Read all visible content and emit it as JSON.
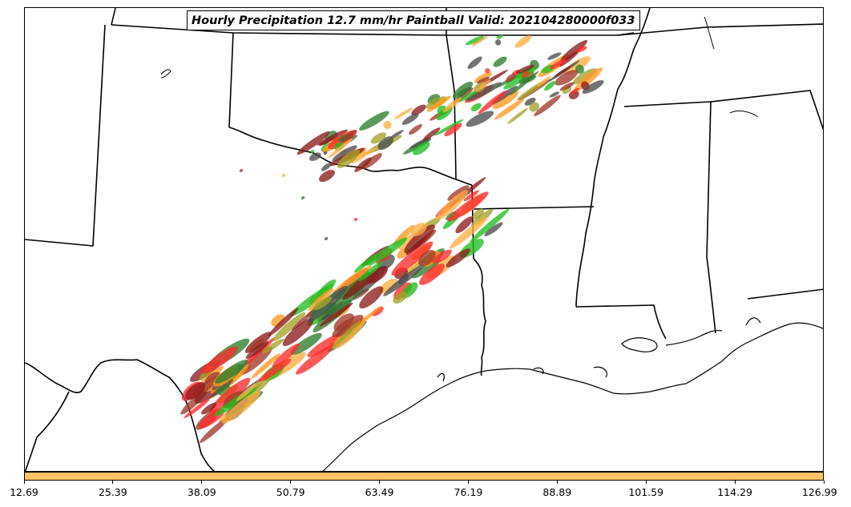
{
  "map": {
    "title": "Hourly Precipitation 12.7 mm/hr Paintball Valid: 202104280000f033",
    "type": "precipitation paintball map",
    "background_color": "#ffffff",
    "boundary_color": "#000000",
    "member_colors": [
      "#ff2a2a",
      "#8b1c1c",
      "#4d4d4d",
      "#1fbf1f",
      "#ff9a1f",
      "#a4a22a",
      "#2e7d2e",
      "#ffae42",
      "#a03a2a"
    ]
  },
  "colorbar": {
    "color": "#ffc266",
    "ticks": [
      "12.69",
      "25.39",
      "38.09",
      "50.79",
      "63.49",
      "76.19",
      "88.89",
      "101.59",
      "114.29",
      "126.99"
    ]
  }
}
